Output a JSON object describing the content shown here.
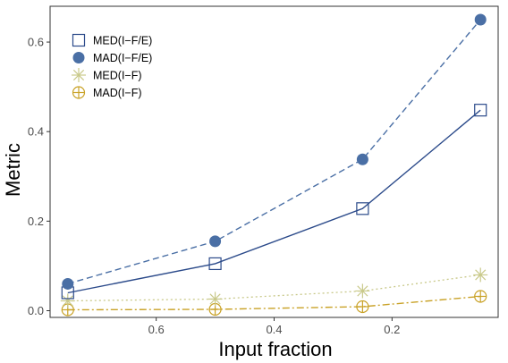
{
  "chart_data": {
    "type": "line",
    "title": "",
    "xlabel": "Input fraction",
    "ylabel": "Metric",
    "x_reversed": true,
    "xlim": [
      0.78,
      0.02
    ],
    "ylim": [
      -0.015,
      0.68
    ],
    "xticks": [
      0.6,
      0.4,
      0.2
    ],
    "xtick_labels": [
      "0.6",
      "0.4",
      "0.2"
    ],
    "yticks": [
      0.0,
      0.2,
      0.4,
      0.6
    ],
    "ytick_labels": [
      "0.0",
      "0.2",
      "0.4",
      "0.6"
    ],
    "grid": false,
    "legend_position": "top-left",
    "x": [
      0.75,
      0.5,
      0.25,
      0.05
    ],
    "series": [
      {
        "name": "MED(I−F/E)",
        "values": [
          0.04,
          0.105,
          0.228,
          0.448
        ],
        "color": "#2b4a8a",
        "dash": "solid",
        "marker": "square-open"
      },
      {
        "name": "MAD(I−F/E)",
        "values": [
          0.06,
          0.155,
          0.338,
          0.65
        ],
        "color": "#4a6fa5",
        "dash": "dashed",
        "marker": "circle-filled"
      },
      {
        "name": "MED(I−F)",
        "values": [
          0.022,
          0.026,
          0.044,
          0.08
        ],
        "color": "#c9c98a",
        "dash": "dotted",
        "marker": "asterisk"
      },
      {
        "name": "MAD(I−F)",
        "values": [
          0.002,
          0.003,
          0.009,
          0.032
        ],
        "color": "#c9a227",
        "dash": "dashdot",
        "marker": "circle-plus"
      }
    ]
  }
}
